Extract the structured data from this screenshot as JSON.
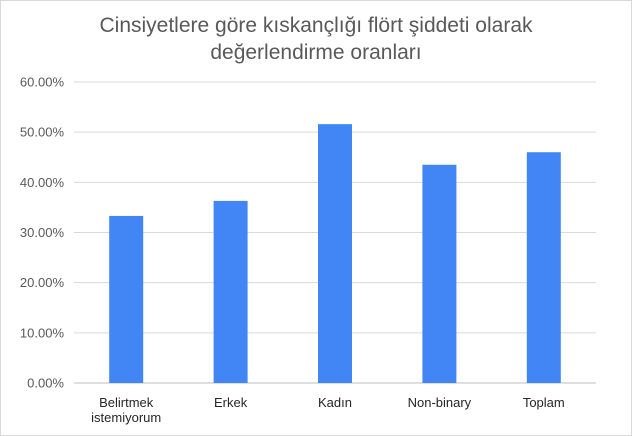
{
  "chart_data": {
    "type": "bar",
    "title_lines": [
      "Cinsiyetlere göre kıskançlığı flört şiddeti olarak",
      "değerlendirme oranları"
    ],
    "categories": [
      [
        "Belirtmek",
        "istemiyorum"
      ],
      [
        "Erkek"
      ],
      [
        "Kadın"
      ],
      [
        "Non-binary"
      ],
      [
        "Toplam"
      ]
    ],
    "values": [
      33.3,
      36.3,
      51.6,
      43.5,
      46.0
    ],
    "ylim": [
      0,
      60
    ],
    "yticks": [
      "0.00%",
      "10.00%",
      "20.00%",
      "30.00%",
      "40.00%",
      "50.00%",
      "60.00%"
    ],
    "bar_color": "#4285f4",
    "grid": true,
    "legend": "none"
  }
}
